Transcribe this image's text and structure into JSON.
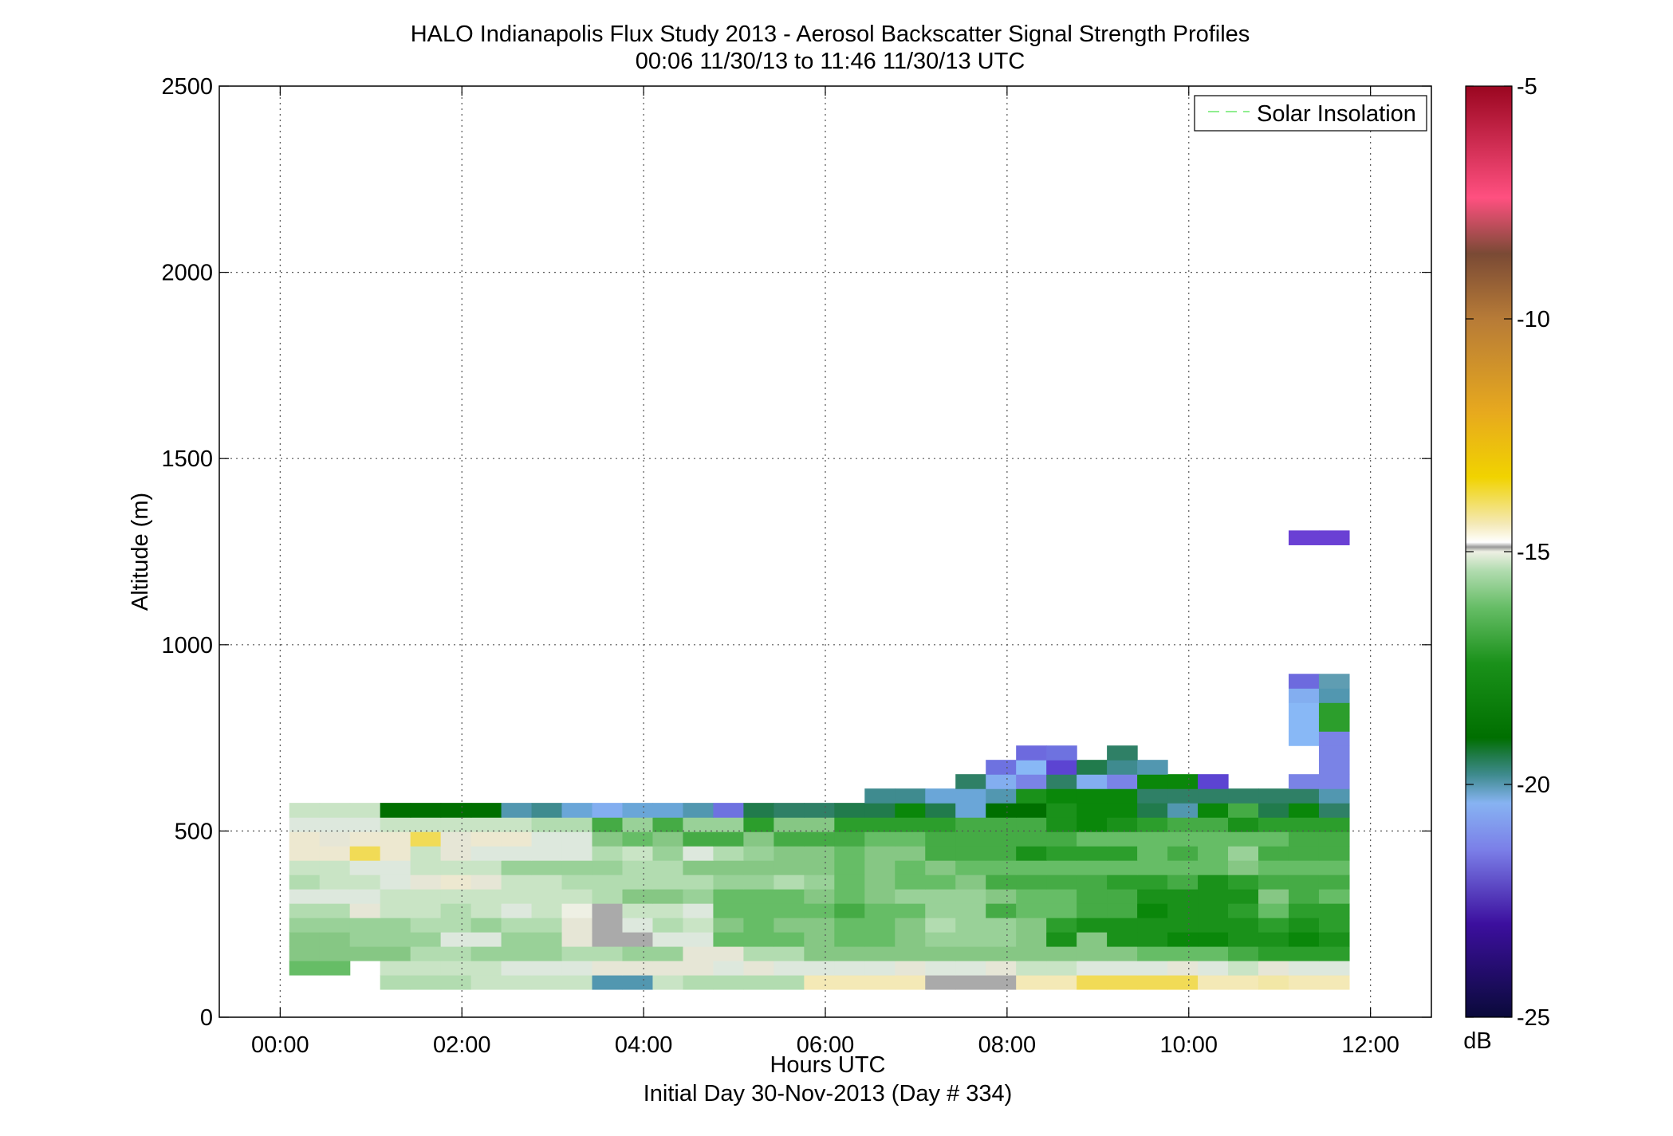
{
  "chart_data": {
    "type": "heatmap",
    "title": "HALO Indianapolis Flux Study 2013 - Aerosol Backscatter Signal Strength Profiles",
    "subtitle": "00:06 11/30/13 to 11:46 11/30/13  UTC",
    "xlabel": "Hours UTC",
    "xlabel2": "Initial Day 30-Nov-2013 (Day # 334)",
    "ylabel": "Altitude (m)",
    "xlim": [
      -0.67,
      12.67
    ],
    "ylim": [
      0,
      2500
    ],
    "x_ticks": [
      0,
      2,
      4,
      6,
      8,
      10,
      12
    ],
    "x_tick_labels": [
      "00:00",
      "02:00",
      "04:00",
      "06:00",
      "08:00",
      "10:00",
      "12:00"
    ],
    "y_ticks": [
      0,
      500,
      1000,
      1500,
      2000,
      2500
    ],
    "y_tick_labels": [
      "0",
      "500",
      "1000",
      "1500",
      "2000",
      "2500"
    ],
    "grid": true,
    "legend": {
      "position": "top-right",
      "entries": [
        {
          "label": "Solar Insolation",
          "color": "#90ee90",
          "style": "dashed"
        }
      ]
    },
    "colorbar": {
      "label": "dB",
      "range": [
        -25,
        -5
      ],
      "ticks": [
        -25,
        -20,
        -15,
        -10,
        -5
      ],
      "tick_labels": [
        "-25",
        "-20",
        "-15",
        "-10",
        "-5"
      ]
    },
    "cells": {
      "x_start": 0.1,
      "x_step": 0.3333,
      "y_start": 75,
      "y_step": 38.5,
      "rows_from_bottom": [
        "GGGdddccccppcddddYYYYXXXYYZZZZYYWYY",
        "ggGccccbbbAAAAbAbbbbAbbAccbbbAbcAbb",
        "ffffddeeeddeeAAddfffffffffffggghiii",
        "ffeeebbeeAXXbbgggfggfeeefjfjjkkjjkj",
        "eeeeddeddAXbdcfgffggfdeefijjjjjjiji",
        "ddAccdcbcBXccbgggghggeehgghhkjjigii",
        "bbbcccccccdffegggfgfeeefgghhjjjjfhg",
        "dccbAaAccdddddeedegfggfhhhhiihjihhh",
        "ccbbccceeeeddfffffgfgfgggggggggfggg",
        "aaZacAbbbbdcebdeffgffhhhjiiighgehhh",
        "aAaaZAaabbfgfhhfhhhgghhhhhggggggghh",
        "bbbcccccddheheeiffiiiihhhjkjihhjiii",
        "cccllllpoqsqqptmnnmmkmqlljkkmpkhmkn",
        "-------------------ooqqpjkkknnnnnnp",
        "----------------------nsrnsrkkv--rr",
        "-----------------------tuvmop-----r",
        "------------------------wt-n------r",
        "---------------------------------ur",
        "---------------------------------ui",
        "---------------------------------ui",
        "---------------------------------sp",
        "---------------------------------wy",
        "-----------------------------------",
        "-----------------------------------",
        "-----------------------------------",
        "-----------------------------------",
        "-----------------------------------",
        "-----------------------------------",
        "-----------------------------------",
        "-----------------------------------",
        "-----------------------------------",
        "---------------------------------xx"
      ],
      "palette": {
        "X": "#aaaaaa",
        "Y": "#f4e9b6",
        "W": "#f2e7a6",
        "Z": "#f1db56",
        "a": "#ede8d0",
        "A": "#e6e6d6",
        "b": "#dde8dd",
        "B": "#eef0e4",
        "c": "#c9e4c5",
        "d": "#b2dcb0",
        "e": "#99d198",
        "f": "#86c784",
        "g": "#66bd66",
        "h": "#45ab45",
        "i": "#2c9e2c",
        "j": "#1a911a",
        "k": "#0a870a",
        "l": "#006f00",
        "m": "#217b4c",
        "n": "#2f8066",
        "o": "#3f8b8f",
        "p": "#5297b0",
        "q": "#6aa6d8",
        "r": "#7a83e6",
        "s": "#83aef0",
        "t": "#6e72e0",
        "u": "#88b8f6",
        "v": "#5c44d2",
        "w": "#6d6ade",
        "x": "#6a40d4",
        "y": "#5f9db2"
      }
    }
  }
}
